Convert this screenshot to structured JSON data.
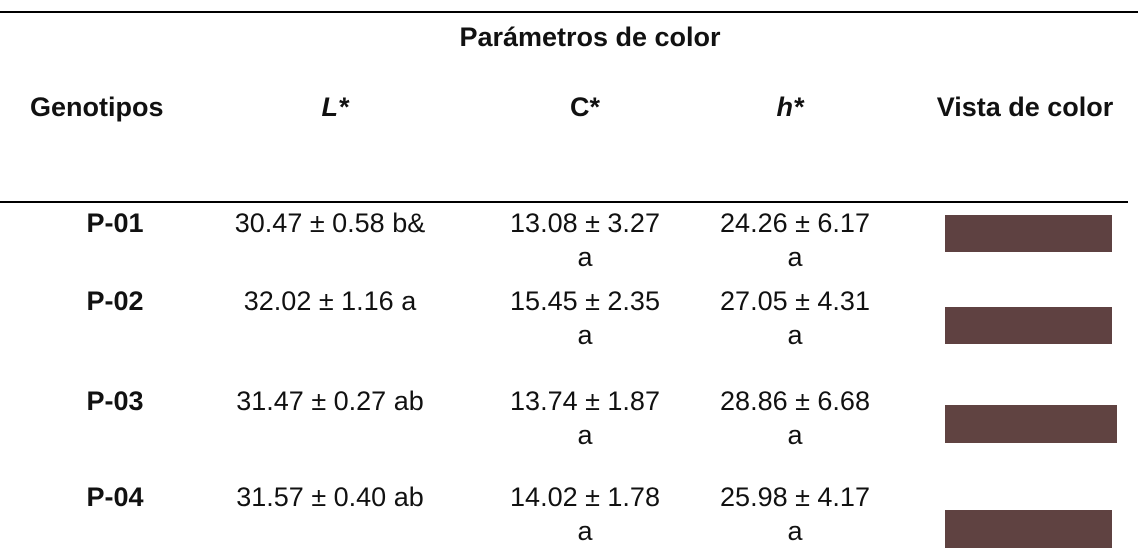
{
  "table": {
    "group_header": "Parámetros de color",
    "columns": [
      "Genotipos",
      "L*",
      "C*",
      "h*",
      "Vista de color"
    ],
    "rows": [
      {
        "genotype": "P-01",
        "L_line1": "30.47 ± 0.58 b&",
        "C_line1": "13.08 ± 3.27",
        "C_line2": "a",
        "h_line1": "24.26 ± 6.17",
        "h_line2": "a",
        "swatch_color": "#5e4141"
      },
      {
        "genotype": "P-02",
        "L_line1": "32.02 ± 1.16 a",
        "C_line1": "15.45 ± 2.35",
        "C_line2": "a",
        "h_line1": "27.05 ± 4.31",
        "h_line2": "a",
        "swatch_color": "#5f4141"
      },
      {
        "genotype": "P-03",
        "L_line1": "31.47 ± 0.27 ab",
        "C_line1": "13.74 ± 1.87",
        "C_line2": "a",
        "h_line1": "28.86 ± 6.68",
        "h_line2": "a",
        "swatch_color": "#604341"
      },
      {
        "genotype": "P-04",
        "L_line1": "31.57 ± 0.40 ab",
        "C_line1": "14.02 ± 1.78",
        "C_line2": "a",
        "h_line1": "25.98 ± 4.17",
        "h_line2": "a",
        "swatch_color": "#5f4241"
      }
    ]
  }
}
